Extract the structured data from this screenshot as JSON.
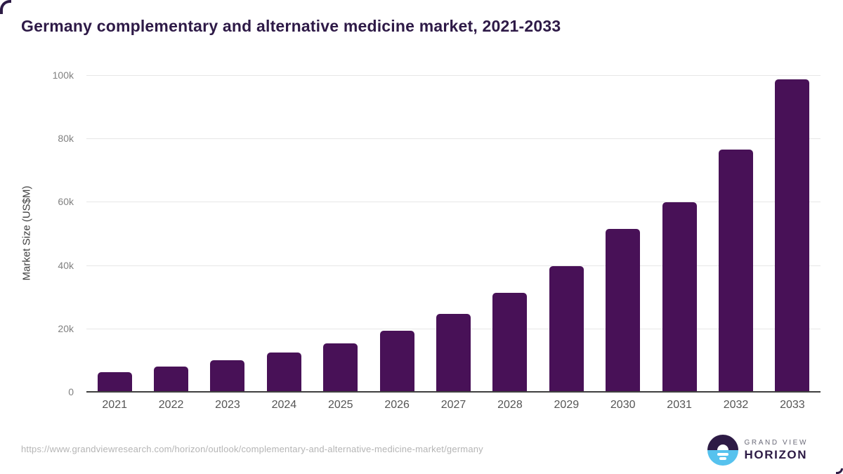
{
  "chart_data": {
    "type": "bar",
    "title": "Germany complementary and alternative medicine market, 2021-2033",
    "categories": [
      "2021",
      "2022",
      "2023",
      "2024",
      "2025",
      "2026",
      "2027",
      "2028",
      "2029",
      "2030",
      "2031",
      "2032",
      "2033"
    ],
    "values": [
      6300,
      7950,
      9900,
      12350,
      15400,
      19350,
      24550,
      31300,
      39750,
      51400,
      59800,
      76600,
      98700
    ],
    "xlabel": "",
    "ylabel": "Market Size (US$M)",
    "ylim": [
      0,
      100000
    ],
    "yticks": [
      {
        "value": 0,
        "label": "0"
      },
      {
        "value": 20000,
        "label": "20k"
      },
      {
        "value": 40000,
        "label": "40k"
      },
      {
        "value": 60000,
        "label": "60k"
      },
      {
        "value": 80000,
        "label": "80k"
      },
      {
        "value": 100000,
        "label": "100k"
      }
    ],
    "grid": true,
    "legend": "none",
    "bar_color": "#481157"
  },
  "footer": {
    "source_url": "https://www.grandviewresearch.com/horizon/outlook/complementary-and-alternative-medicine-market/germany",
    "logo": {
      "top_text": "GRAND VIEW",
      "bottom_text": "HORIZON"
    }
  },
  "colors": {
    "title": "#2e1a47",
    "bar": "#481157",
    "gridline": "#e7e7e7",
    "axis_line": "#3f3f3f",
    "y_tick_text": "#808080",
    "x_tick_text": "#555555",
    "axis_label_text": "#3e3e3e",
    "url_text": "#b5b5b5",
    "logo_dark": "#2d1b45",
    "logo_blue": "#56c2ee",
    "logo_gray": "#6a6a78"
  }
}
